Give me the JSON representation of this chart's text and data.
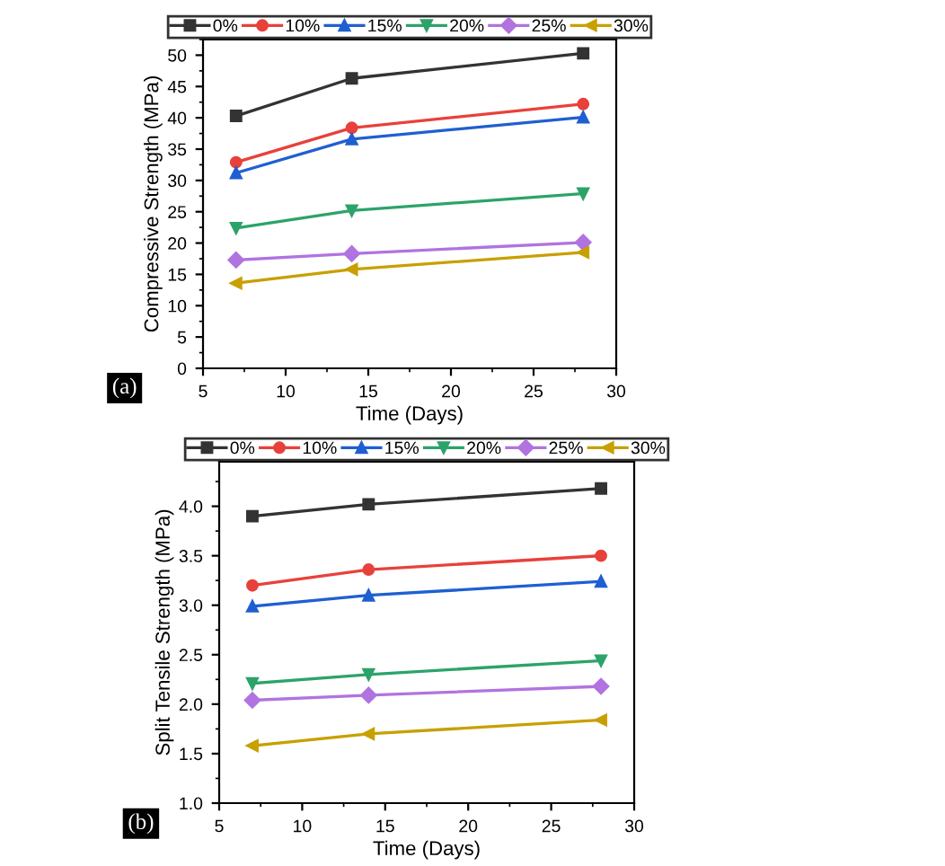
{
  "chart_data": [
    {
      "type": "line",
      "xlabel": "Time (Days)",
      "ylabel": "Compressive Strength (MPa)",
      "x": [
        7,
        14,
        28
      ],
      "xlim": [
        5,
        30
      ],
      "xticks": [
        5,
        10,
        15,
        20,
        25,
        30
      ],
      "ylim": [
        0,
        52.5
      ],
      "yticks": [
        0,
        5,
        10,
        15,
        20,
        25,
        30,
        35,
        40,
        45,
        50
      ],
      "legend": "top",
      "grid": false,
      "annotations": [
        "(a)"
      ],
      "series": [
        {
          "name": "0%",
          "color": "#333333",
          "marker": "square",
          "values": [
            40.3,
            46.3,
            50.3
          ]
        },
        {
          "name": "10%",
          "color": "#e8413b",
          "marker": "circle",
          "values": [
            32.9,
            38.4,
            42.2
          ]
        },
        {
          "name": "15%",
          "color": "#1f5fd1",
          "marker": "triangle",
          "values": [
            31.2,
            36.6,
            40.1
          ]
        },
        {
          "name": "20%",
          "color": "#2ca36a",
          "marker": "triangle-down",
          "values": [
            22.4,
            25.2,
            27.9
          ]
        },
        {
          "name": "25%",
          "color": "#b173e0",
          "marker": "diamond",
          "values": [
            17.3,
            18.3,
            20.1
          ]
        },
        {
          "name": "30%",
          "color": "#c8a000",
          "marker": "triangle-left",
          "values": [
            13.6,
            15.8,
            18.5
          ]
        }
      ]
    },
    {
      "type": "line",
      "xlabel": "Time (Days)",
      "ylabel": "Split Tensile Strength (MPa)",
      "x": [
        7,
        14,
        28
      ],
      "xlim": [
        5,
        30
      ],
      "xticks": [
        5,
        10,
        15,
        20,
        25,
        30
      ],
      "ylim": [
        1.0,
        4.45
      ],
      "yticks": [
        {
          "value": 1.0,
          "label": "1.0"
        },
        1.5,
        {
          "value": 2.0,
          "label": "2.0"
        },
        2.5,
        {
          "value": 3.0,
          "label": "3.0"
        },
        3.5,
        {
          "value": 4.0,
          "label": "4.0"
        }
      ],
      "legend": "top",
      "grid": false,
      "annotations": [
        "(b)"
      ],
      "series": [
        {
          "name": "0%",
          "color": "#333333",
          "marker": "square",
          "values": [
            3.9,
            4.02,
            4.18
          ]
        },
        {
          "name": "10%",
          "color": "#e8413b",
          "marker": "circle",
          "values": [
            3.2,
            3.36,
            3.5
          ]
        },
        {
          "name": "15%",
          "color": "#1f5fd1",
          "marker": "triangle",
          "values": [
            2.99,
            3.1,
            3.24
          ]
        },
        {
          "name": "20%",
          "color": "#2ca36a",
          "marker": "triangle-down",
          "values": [
            2.21,
            2.3,
            2.44
          ]
        },
        {
          "name": "25%",
          "color": "#b173e0",
          "marker": "diamond",
          "values": [
            2.04,
            2.09,
            2.18
          ]
        },
        {
          "name": "30%",
          "color": "#c8a000",
          "marker": "triangle-left",
          "values": [
            1.58,
            1.7,
            1.84
          ]
        }
      ]
    }
  ]
}
